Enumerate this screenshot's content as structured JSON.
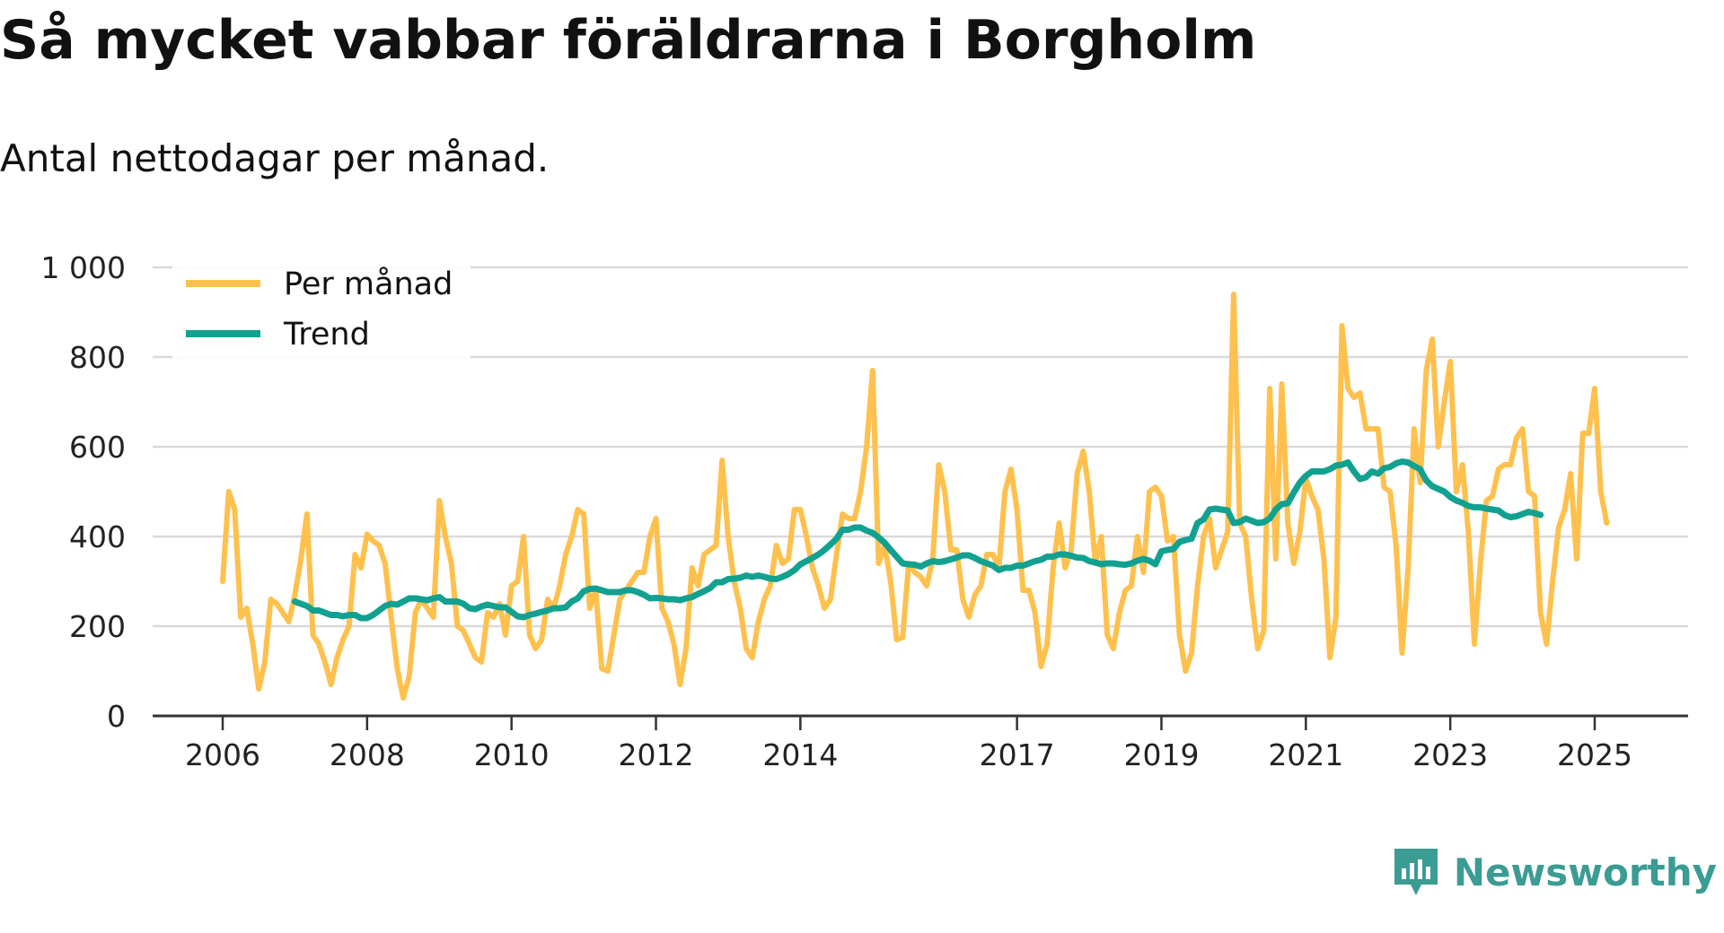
{
  "title": "Så mycket vabbar föräldrarna i Borgholm",
  "subtitle": "Antal nettodagar per månad.",
  "brand": {
    "name": "Newsworthy",
    "icon": "bar-chart-badge-icon",
    "color": "#3a9c93"
  },
  "chart_data": {
    "type": "line",
    "ylim": [
      0,
      1000
    ],
    "yticks": [
      0,
      200,
      400,
      600,
      800,
      1000
    ],
    "ytick_labels": [
      "0",
      "200",
      "400",
      "600",
      "800",
      "1 000"
    ],
    "xticks": [
      2006,
      2008,
      2010,
      2012,
      2014,
      2017,
      2019,
      2021,
      2023,
      2025
    ],
    "xtick_labels": [
      "2006",
      "2008",
      "2010",
      "2012",
      "2014",
      "2017",
      "2019",
      "2021",
      "2023",
      "2025"
    ],
    "grid": true,
    "legend_position": "top-left",
    "series": [
      {
        "name": "Per månad",
        "color": "#ffc04d",
        "start": [
          2006,
          1
        ],
        "values": [
          300,
          500,
          460,
          220,
          240,
          160,
          60,
          120,
          260,
          250,
          230,
          210,
          270,
          350,
          450,
          180,
          160,
          120,
          70,
          130,
          170,
          200,
          360,
          330,
          405,
          390,
          380,
          340,
          220,
          105,
          40,
          90,
          230,
          260,
          240,
          220,
          480,
          400,
          340,
          200,
          190,
          160,
          130,
          120,
          230,
          220,
          250,
          180,
          290,
          300,
          400,
          180,
          150,
          170,
          260,
          240,
          290,
          360,
          400,
          460,
          450,
          240,
          280,
          105,
          100,
          180,
          260,
          280,
          300,
          320,
          320,
          400,
          440,
          240,
          210,
          160,
          70,
          150,
          330,
          290,
          360,
          370,
          380,
          570,
          400,
          300,
          240,
          150,
          130,
          210,
          260,
          290,
          380,
          340,
          350,
          460,
          460,
          400,
          330,
          290,
          240,
          260,
          360,
          450,
          440,
          440,
          500,
          600,
          770,
          340,
          380,
          300,
          170,
          175,
          340,
          320,
          310,
          290,
          350,
          560,
          500,
          370,
          370,
          260,
          220,
          270,
          290,
          360,
          360,
          330,
          500,
          550,
          460,
          280,
          280,
          230,
          110,
          160,
          330,
          430,
          330,
          370,
          540,
          590,
          500,
          340,
          400,
          180,
          150,
          230,
          280,
          290,
          400,
          320,
          500,
          510,
          490,
          390,
          400,
          180,
          100,
          140,
          290,
          400,
          440,
          330,
          370,
          410,
          940,
          430,
          400,
          260,
          150,
          190,
          730,
          350,
          740,
          430,
          340,
          410,
          530,
          490,
          460,
          350,
          130,
          220,
          870,
          730,
          710,
          720,
          640,
          640,
          640,
          510,
          500,
          380,
          140,
          330,
          640,
          520,
          770,
          840,
          600,
          700,
          790,
          500,
          560,
          410,
          160,
          340,
          480,
          490,
          550,
          560,
          560,
          620,
          640,
          500,
          490,
          230,
          160,
          300,
          420,
          460,
          540,
          350,
          630,
          630,
          730,
          500,
          430
        ]
      },
      {
        "name": "Trend",
        "color": "#12a191",
        "start": [
          2007,
          1
        ],
        "values": [
          255,
          250,
          245,
          235,
          235,
          230,
          225,
          225,
          222,
          225,
          225,
          218,
          218,
          225,
          235,
          245,
          250,
          248,
          255,
          262,
          262,
          260,
          258,
          262,
          265,
          255,
          255,
          255,
          250,
          240,
          238,
          244,
          248,
          245,
          242,
          242,
          232,
          222,
          220,
          225,
          228,
          232,
          235,
          240,
          240,
          242,
          255,
          262,
          278,
          283,
          284,
          280,
          276,
          276,
          276,
          280,
          280,
          276,
          270,
          262,
          263,
          262,
          260,
          260,
          258,
          262,
          265,
          272,
          278,
          285,
          298,
          298,
          305,
          306,
          308,
          313,
          310,
          313,
          310,
          306,
          305,
          310,
          316,
          325,
          338,
          345,
          352,
          360,
          370,
          382,
          395,
          415,
          415,
          420,
          420,
          413,
          408,
          398,
          386,
          370,
          355,
          340,
          338,
          337,
          333,
          340,
          345,
          343,
          345,
          349,
          353,
          358,
          358,
          352,
          345,
          340,
          335,
          325,
          330,
          330,
          335,
          335,
          340,
          345,
          348,
          355,
          355,
          360,
          360,
          357,
          353,
          352,
          345,
          342,
          338,
          340,
          340,
          338,
          337,
          340,
          346,
          350,
          346,
          338,
          367,
          370,
          372,
          388,
          392,
          395,
          430,
          438,
          460,
          462,
          460,
          458,
          430,
          432,
          440,
          435,
          430,
          432,
          440,
          460,
          472,
          474,
          498,
          520,
          535,
          545,
          545,
          545,
          550,
          558,
          560,
          565,
          545,
          528,
          532,
          545,
          540,
          552,
          555,
          563,
          567,
          565,
          557,
          550,
          525,
          512,
          506,
          500,
          488,
          480,
          475,
          468,
          465,
          465,
          462,
          460,
          458,
          448,
          443,
          445,
          450,
          455,
          452,
          448
        ]
      }
    ]
  }
}
